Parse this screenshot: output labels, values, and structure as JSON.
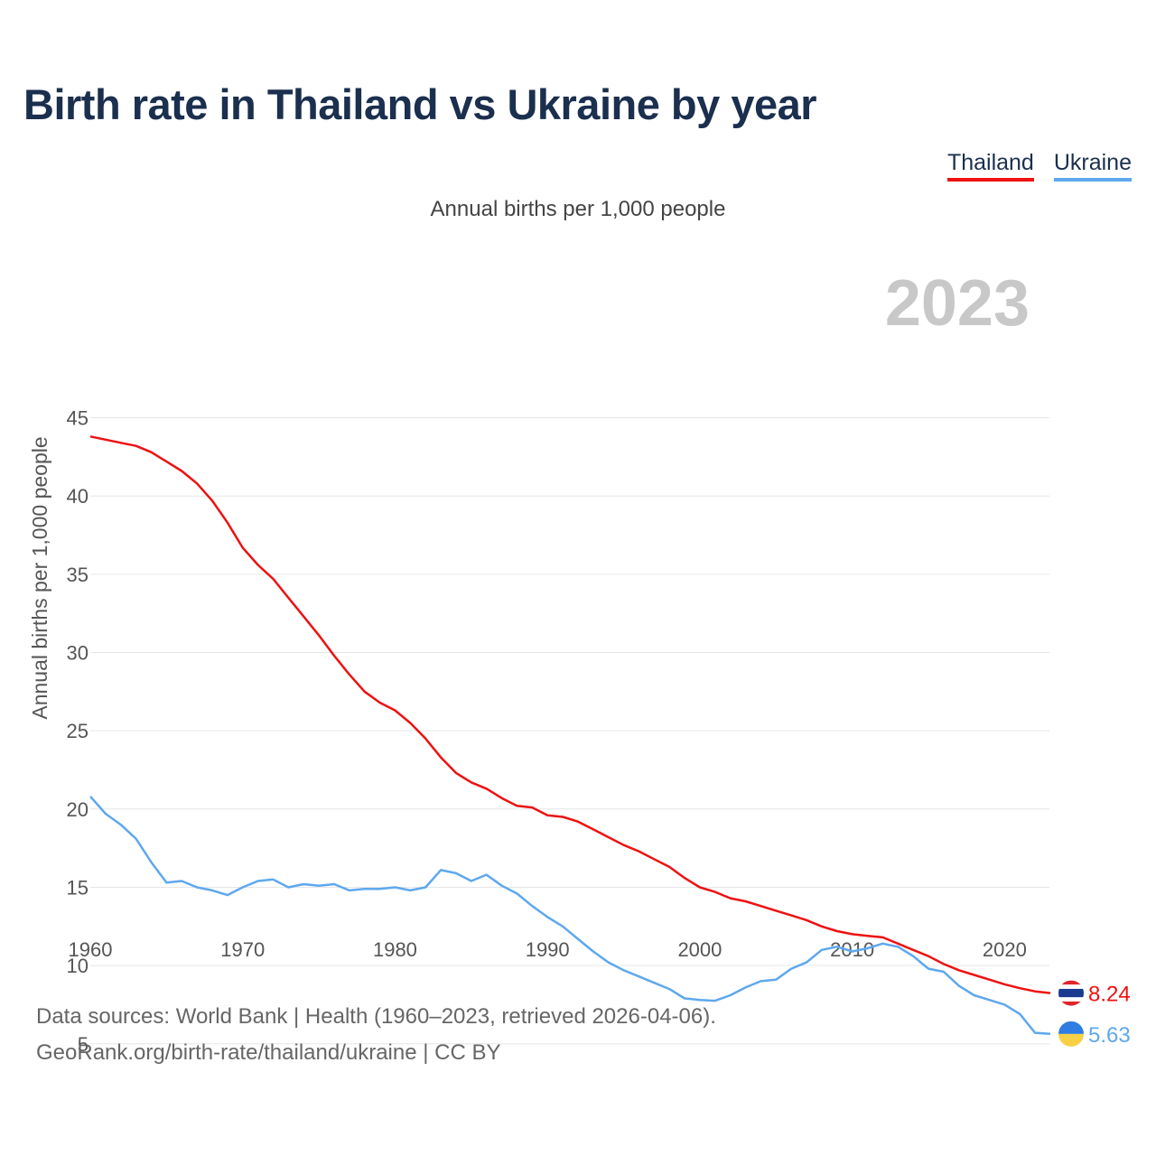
{
  "title": "Birth rate in Thailand vs Ukraine by year",
  "subtitle": "Annual births per 1,000 people",
  "legend": [
    {
      "label": "Thailand",
      "color": "#ee1111"
    },
    {
      "label": "Ukraine",
      "color": "#5ea8ee"
    }
  ],
  "footer": {
    "line1": "Data sources: World Bank | Health (1960–2023, retrieved 2026-04-06).",
    "line2": "GeoRank.org/birth-rate/thailand/ukraine | CC BY"
  },
  "chart_data": {
    "type": "line",
    "title": "Birth rate in Thailand vs Ukraine by year",
    "ylabel": "Annual births per 1,000 people",
    "xlabel": "",
    "current_year_label": "2023",
    "xlim": [
      1960,
      2023
    ],
    "ylim": [
      2.5,
      45
    ],
    "x_ticks": [
      1960,
      1970,
      1980,
      1990,
      2000,
      2010,
      2020
    ],
    "y_ticks": [
      5,
      10,
      15,
      20,
      25,
      30,
      35,
      40,
      45
    ],
    "grid": true,
    "legend_position": "top-right",
    "x": [
      1960,
      1961,
      1962,
      1963,
      1964,
      1965,
      1966,
      1967,
      1968,
      1969,
      1970,
      1971,
      1972,
      1973,
      1974,
      1975,
      1976,
      1977,
      1978,
      1979,
      1980,
      1981,
      1982,
      1983,
      1984,
      1985,
      1986,
      1987,
      1988,
      1989,
      1990,
      1991,
      1992,
      1993,
      1994,
      1995,
      1996,
      1997,
      1998,
      1999,
      2000,
      2001,
      2002,
      2003,
      2004,
      2005,
      2006,
      2007,
      2008,
      2009,
      2010,
      2011,
      2012,
      2013,
      2014,
      2015,
      2016,
      2017,
      2018,
      2019,
      2020,
      2021,
      2022,
      2023
    ],
    "series": [
      {
        "name": "Thailand",
        "color": "#ee1111",
        "end_label": "8.24",
        "values": [
          43.8,
          43.6,
          43.4,
          43.2,
          42.8,
          42.2,
          41.6,
          40.8,
          39.7,
          38.3,
          36.7,
          35.6,
          34.7,
          33.5,
          32.3,
          31.1,
          29.8,
          28.6,
          27.5,
          26.8,
          26.3,
          25.5,
          24.5,
          23.3,
          22.3,
          21.7,
          21.3,
          20.7,
          20.2,
          20.1,
          19.6,
          19.5,
          19.2,
          18.7,
          18.2,
          17.7,
          17.3,
          16.8,
          16.3,
          15.6,
          15.0,
          14.7,
          14.3,
          14.1,
          13.8,
          13.5,
          13.2,
          12.9,
          12.5,
          12.2,
          12.0,
          11.9,
          11.8,
          11.4,
          11.0,
          10.6,
          10.1,
          9.7,
          9.4,
          9.1,
          8.8,
          8.55,
          8.35,
          8.24
        ]
      },
      {
        "name": "Ukraine",
        "color": "#5ea8ee",
        "end_label": "5.63",
        "values": [
          20.8,
          19.7,
          19.0,
          18.1,
          16.6,
          15.3,
          15.4,
          15.0,
          14.8,
          14.5,
          15.0,
          15.4,
          15.5,
          15.0,
          15.2,
          15.1,
          15.2,
          14.8,
          14.9,
          14.9,
          15.0,
          14.8,
          15.0,
          16.1,
          15.9,
          15.4,
          15.8,
          15.1,
          14.6,
          13.8,
          13.1,
          12.5,
          11.7,
          10.9,
          10.2,
          9.7,
          9.3,
          8.9,
          8.5,
          7.9,
          7.8,
          7.75,
          8.1,
          8.6,
          9.0,
          9.1,
          9.8,
          10.2,
          11.0,
          11.2,
          10.9,
          11.1,
          11.4,
          11.2,
          10.6,
          9.8,
          9.6,
          8.7,
          8.1,
          7.8,
          7.5,
          6.9,
          5.7,
          5.63
        ]
      }
    ]
  }
}
